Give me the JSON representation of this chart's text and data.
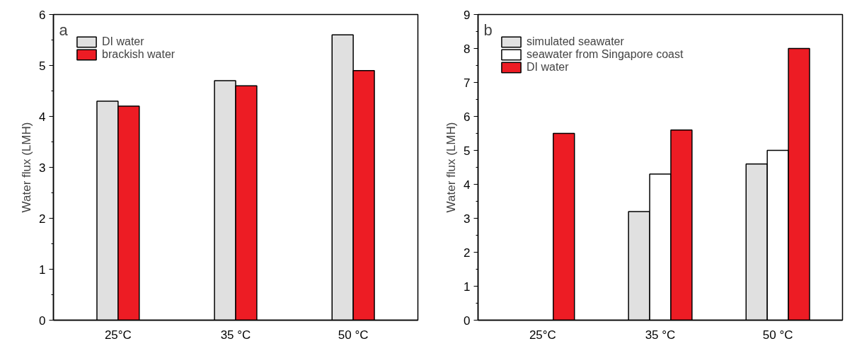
{
  "chart_data": [
    {
      "type": "bar",
      "annotations": [
        "a"
      ],
      "ylabel": "Water flux (LMH)",
      "categories": [
        "25°C",
        "35 °C",
        "50 °C"
      ],
      "series": [
        {
          "name": "DI water",
          "color": "#e0e0e0",
          "values": [
            4.3,
            4.7,
            5.6
          ]
        },
        {
          "name": "brackish water",
          "color": "#ed1c24",
          "values": [
            4.2,
            4.6,
            4.9
          ]
        }
      ],
      "ylim": [
        0,
        6
      ],
      "yticks": [
        0,
        1,
        2,
        3,
        4,
        5,
        6
      ],
      "legend": "top left",
      "grid": false
    },
    {
      "type": "bar",
      "annotations": [
        "b"
      ],
      "ylabel": "Water flux (LMH)",
      "categories": [
        "25°C",
        "35 °C",
        "50 °C"
      ],
      "series": [
        {
          "name": "simulated seawater",
          "color": "#e0e0e0",
          "values": [
            null,
            3.2,
            4.6
          ]
        },
        {
          "name": "seawater from Singapore coast",
          "color": "#ffffff",
          "values": [
            null,
            4.3,
            5.0
          ]
        },
        {
          "name": "DI water",
          "color": "#ed1c24",
          "values": [
            5.5,
            5.6,
            8.0
          ]
        }
      ],
      "ylim": [
        0,
        9
      ],
      "yticks": [
        0,
        1,
        2,
        3,
        4,
        5,
        6,
        7,
        8,
        9
      ],
      "legend": "top left",
      "grid": false
    }
  ]
}
